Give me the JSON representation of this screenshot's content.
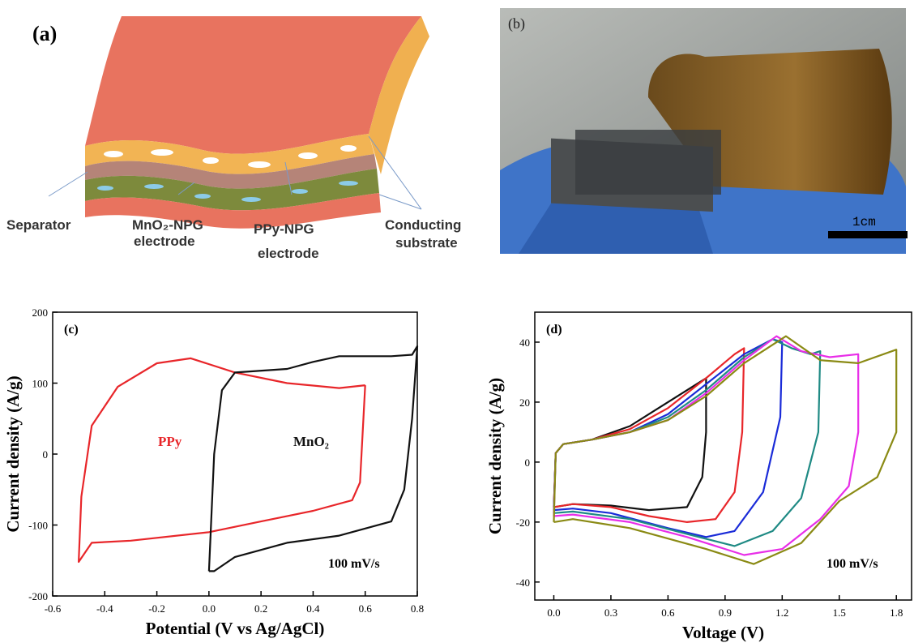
{
  "panel_a": {
    "label": "(a)",
    "labels": [
      "Separator",
      "MnO₂-NPG",
      "electrode",
      "PPy-NPG",
      "electrode",
      "Conducting",
      "substrate"
    ]
  },
  "panel_b": {
    "label": "(b)",
    "scale_bar": "1cm"
  },
  "chart_data": [
    {
      "type": "line",
      "panel_label": "(c)",
      "x_label": "Potential (V vs Ag/AgCl)",
      "y_label": "Current density (A/g)",
      "annotation": "100 mV/s",
      "xlim": [
        -0.6,
        0.8
      ],
      "ylim": [
        -200,
        200
      ],
      "xticks": [
        -0.6,
        -0.4,
        -0.2,
        {
          "value": 0,
          "label": "0.0"
        },
        0.2,
        0.4,
        0.6,
        0.8
      ],
      "yticks": [
        -200,
        -100,
        0,
        100,
        200
      ],
      "series": [
        {
          "name": "PPy",
          "color": "#e8262a",
          "x": [
            0.6,
            0.5,
            0.3,
            0.1,
            -0.07,
            -0.2,
            -0.35,
            -0.45,
            -0.49,
            -0.5,
            -0.45,
            -0.3,
            0.0,
            0.2,
            0.4,
            0.55,
            0.58,
            0.6
          ],
          "values": [
            97,
            93,
            100,
            115,
            135,
            128,
            95,
            40,
            -60,
            -152,
            -125,
            -122,
            -110,
            -95,
            -80,
            -65,
            -40,
            97
          ]
        },
        {
          "name": "MnO₂",
          "color": "#111111",
          "x": [
            0.0,
            0.02,
            0.05,
            0.1,
            0.3,
            0.4,
            0.5,
            0.7,
            0.78,
            0.8,
            0.78,
            0.75,
            0.7,
            0.5,
            0.3,
            0.1,
            0.02,
            0.0
          ],
          "values": [
            -165,
            0,
            90,
            115,
            120,
            130,
            138,
            138,
            140,
            152,
            50,
            -50,
            -95,
            -115,
            -125,
            -145,
            -165,
            -165
          ]
        }
      ]
    },
    {
      "type": "line",
      "panel_label": "(d)",
      "x_label": "Voltage (V)",
      "y_label": "Current density (A/g)",
      "annotation": "100 mV/s",
      "xlim": [
        -0.1,
        1.88
      ],
      "ylim": [
        -46,
        50
      ],
      "xticks": [
        {
          "value": 0,
          "label": "0.0"
        },
        0.3,
        0.6,
        0.9,
        1.2,
        1.5,
        1.8
      ],
      "yticks": [
        -40,
        -20,
        0,
        20,
        40
      ],
      "series": [
        {
          "color": "#111111",
          "x": [
            0,
            0.01,
            0.05,
            0.2,
            0.4,
            0.6,
            0.75,
            0.8,
            0.8,
            0.78,
            0.7,
            0.5,
            0.3,
            0.1,
            0
          ],
          "values": [
            -15,
            3,
            6,
            7.5,
            12,
            20,
            26,
            28,
            10,
            -5,
            -15,
            -16,
            -14.5,
            -14,
            -15
          ]
        },
        {
          "color": "#e8262a",
          "x": [
            0,
            0.01,
            0.05,
            0.2,
            0.4,
            0.6,
            0.8,
            0.95,
            1.0,
            0.99,
            0.95,
            0.85,
            0.7,
            0.5,
            0.3,
            0.1,
            0
          ],
          "values": [
            -15,
            3,
            6,
            7.5,
            11,
            18,
            28,
            36,
            38,
            10,
            -10,
            -19,
            -20,
            -18,
            -15,
            -14,
            -15
          ]
        },
        {
          "color": "#1a2bd8",
          "x": [
            0,
            0.01,
            0.05,
            0.2,
            0.4,
            0.6,
            0.8,
            1.0,
            1.15,
            1.2,
            1.19,
            1.1,
            0.95,
            0.8,
            0.6,
            0.3,
            0.1,
            0
          ],
          "values": [
            -16,
            3,
            6,
            7.5,
            10,
            16,
            26,
            36,
            41,
            40,
            15,
            -10,
            -23,
            -25,
            -22,
            -17,
            -15.5,
            -16
          ]
        },
        {
          "color": "#1f8a84",
          "x": [
            0,
            0.01,
            0.05,
            0.2,
            0.4,
            0.6,
            0.8,
            1.0,
            1.15,
            1.25,
            1.35,
            1.4,
            1.39,
            1.3,
            1.15,
            0.95,
            0.7,
            0.4,
            0.1,
            0
          ],
          "values": [
            -17,
            3,
            6,
            7.5,
            10,
            15,
            24,
            35,
            41,
            38,
            36,
            37,
            10,
            -12,
            -23,
            -28,
            -24,
            -19,
            -16.5,
            -17
          ]
        },
        {
          "color": "#e82ee8",
          "x": [
            0,
            0.01,
            0.05,
            0.2,
            0.4,
            0.6,
            0.8,
            1.0,
            1.17,
            1.3,
            1.45,
            1.6,
            1.6,
            1.55,
            1.4,
            1.2,
            1.0,
            0.7,
            0.4,
            0.1,
            0
          ],
          "values": [
            -18,
            3,
            6,
            7.5,
            10,
            14,
            23,
            34,
            42,
            37,
            35,
            36,
            10,
            -8,
            -19,
            -29,
            -31,
            -25,
            -20,
            -17.5,
            -18
          ]
        },
        {
          "color": "#8a8a14",
          "x": [
            0,
            0.01,
            0.05,
            0.2,
            0.4,
            0.6,
            0.8,
            1.0,
            1.22,
            1.4,
            1.6,
            1.8,
            1.8,
            1.7,
            1.5,
            1.3,
            1.05,
            0.8,
            0.4,
            0.1,
            0
          ],
          "values": [
            -20,
            3,
            6,
            7.5,
            10,
            14,
            22,
            33,
            42,
            34,
            33,
            37.5,
            10,
            -5,
            -13,
            -27,
            -34,
            -29,
            -22,
            -19,
            -20
          ]
        }
      ]
    }
  ]
}
